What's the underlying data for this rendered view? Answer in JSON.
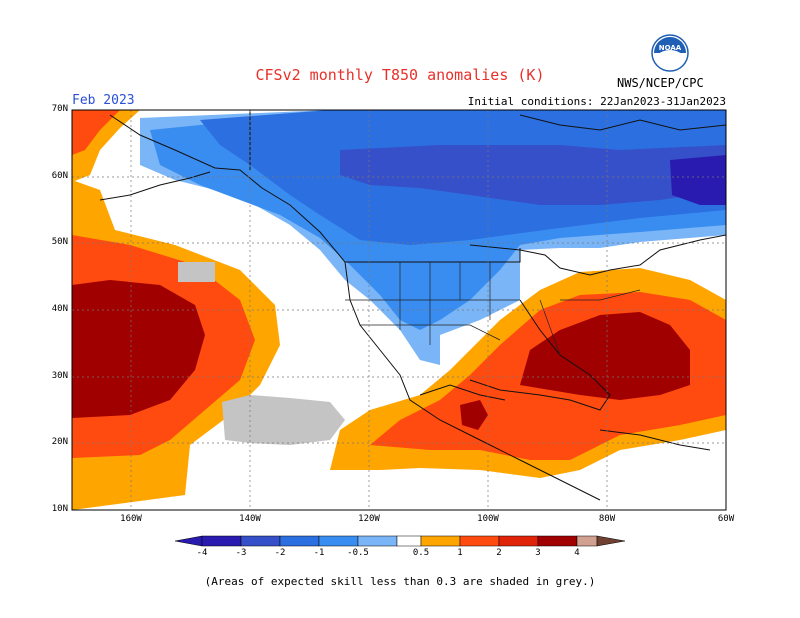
{
  "header": {
    "title": "CFSv2 monthly T850 anomalies (K)",
    "month": "Feb 2023",
    "initial_conditions": "Initial conditions: 22Jan2023-31Jan2023",
    "agency": "NWS/NCEP/CPC",
    "logo_icon": "noaa-logo-icon"
  },
  "map": {
    "lat_range": [
      10,
      70
    ],
    "lon_range": [
      -170,
      -60
    ],
    "lat_labels": [
      "70N",
      "60N",
      "50N",
      "40N",
      "30N",
      "20N",
      "10N"
    ],
    "lon_labels": [
      "160W",
      "140W",
      "120W",
      "100W",
      "80W",
      "60W"
    ],
    "skill_note": "grey = skill < 0.3"
  },
  "colorbar": {
    "labels": [
      "-4",
      "-3",
      "-2",
      "-1",
      "-0.5",
      "0.5",
      "1",
      "2",
      "3",
      "4"
    ],
    "colors": [
      "#2a1bb0",
      "#3550c8",
      "#2c6fe0",
      "#3a8df0",
      "#7ab6f7",
      "#ffffff",
      "#ffa500",
      "#ff4a10",
      "#e0240a",
      "#a00000",
      "#d0a090",
      "#704030"
    ]
  },
  "footnote": "(Areas of expected skill less than 0.3 are shaded in grey.)"
}
